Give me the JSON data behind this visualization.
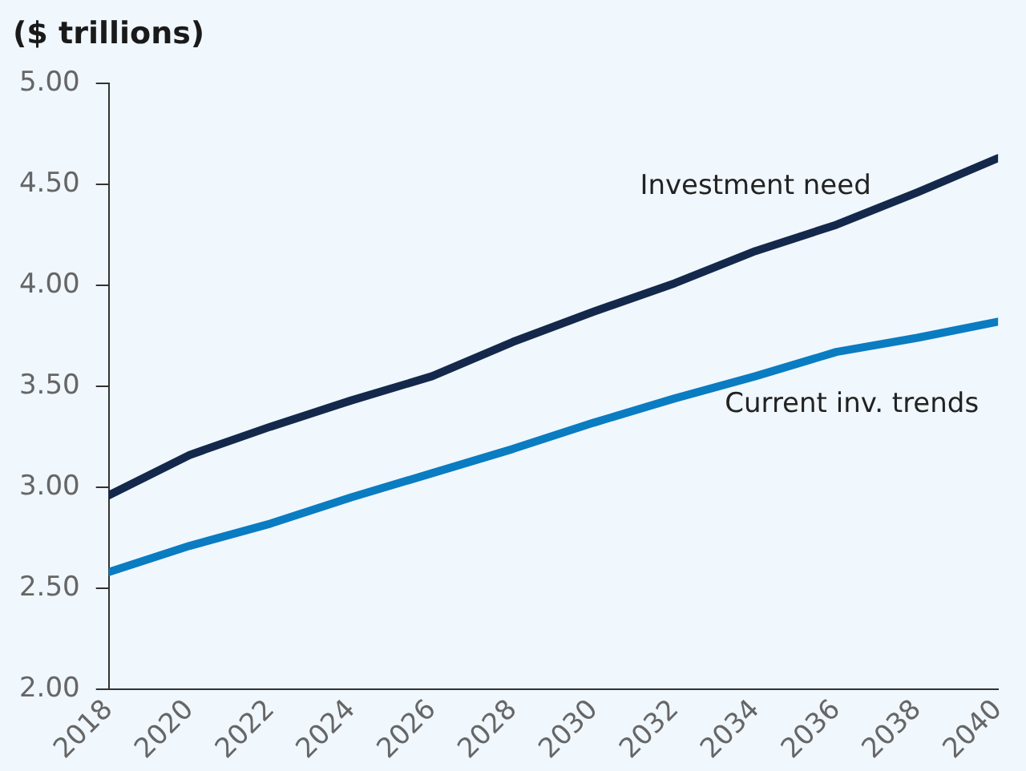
{
  "chart_data": {
    "type": "line",
    "ylabel": "($ trillions)",
    "x": [
      2018,
      2020,
      2022,
      2024,
      2026,
      2028,
      2030,
      2032,
      2034,
      2036,
      2038,
      2040
    ],
    "series": [
      {
        "name": "Investment need",
        "color": "#14284b",
        "values": [
          2.96,
          3.16,
          3.3,
          3.43,
          3.55,
          3.72,
          3.87,
          4.01,
          4.17,
          4.3,
          4.46,
          4.63
        ]
      },
      {
        "name": "Current inv. trends",
        "color": "#0a7cc1",
        "values": [
          2.58,
          2.71,
          2.82,
          2.95,
          3.07,
          3.19,
          3.32,
          3.44,
          3.55,
          3.67,
          3.74,
          3.82
        ]
      }
    ],
    "xlim": [
      2018,
      2040
    ],
    "xticks": [
      2018,
      2020,
      2022,
      2024,
      2026,
      2028,
      2030,
      2032,
      2034,
      2036,
      2038,
      2040
    ],
    "ylim": [
      2,
      5
    ],
    "yticks": [
      {
        "value": 2,
        "label": "2.00"
      },
      {
        "value": 2.5,
        "label": "2.50"
      },
      {
        "value": 3,
        "label": "3.00"
      },
      {
        "value": 3.5,
        "label": "3.50"
      },
      {
        "value": 4,
        "label": "4.00"
      },
      {
        "value": 4.5,
        "label": "4.50"
      },
      {
        "value": 5,
        "label": "5.00"
      }
    ],
    "grid": false,
    "legend": false,
    "marker": "none",
    "line_style": "solid"
  }
}
